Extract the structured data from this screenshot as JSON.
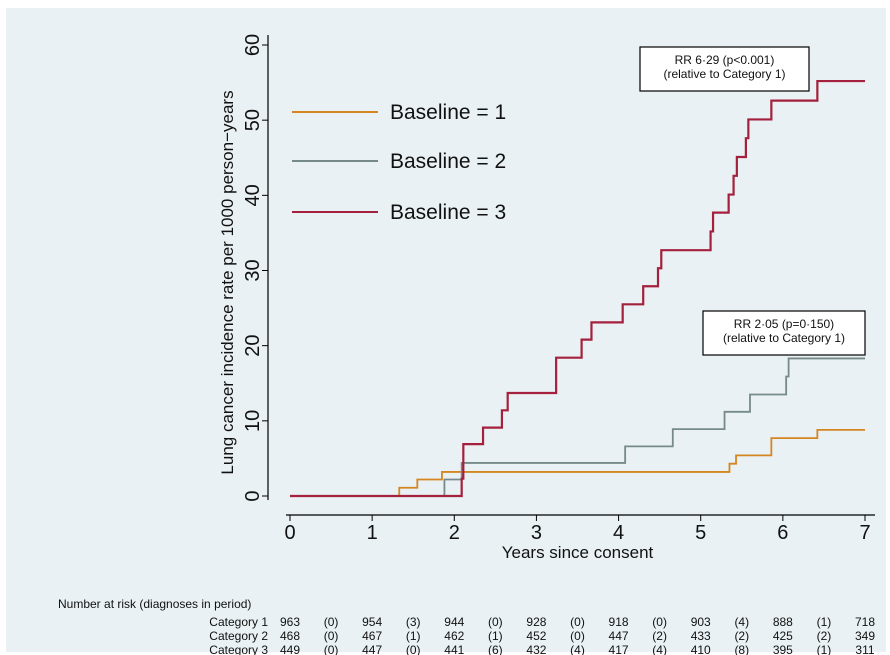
{
  "chart_data": {
    "type": "line",
    "step": true,
    "xlabel": "Years since consent",
    "ylabel": "Lung cancer incidence rate per 1000 person−years",
    "xlim": [
      0,
      7
    ],
    "ylim": [
      0,
      60
    ],
    "xticks": [
      "0",
      "1",
      "2",
      "3",
      "4",
      "5",
      "6",
      "7"
    ],
    "yticks": [
      "0",
      "10",
      "20",
      "30",
      "40",
      "50",
      "60"
    ],
    "grid": false,
    "legend_position": "top-left",
    "series": [
      {
        "name": "Baseline = 1",
        "color": "#d4861f",
        "x": [
          0,
          1.33,
          1.55,
          1.85,
          5.28,
          5.35,
          5.43,
          5.86,
          6.42,
          7.0
        ],
        "y": [
          0,
          1.1,
          2.2,
          3.2,
          3.2,
          4.3,
          5.4,
          7.7,
          8.8,
          8.8
        ]
      },
      {
        "name": "Baseline = 2",
        "color": "#768a8a",
        "x": [
          0,
          1.88,
          2.09,
          4.08,
          4.66,
          5.29,
          5.6,
          6.04,
          6.07,
          7.0
        ],
        "y": [
          0,
          2.2,
          4.4,
          6.6,
          8.9,
          11.2,
          13.5,
          15.9,
          18.3,
          18.3
        ]
      },
      {
        "name": "Baseline = 3",
        "color": "#a4203c",
        "x": [
          0,
          2.09,
          2.11,
          2.35,
          2.58,
          2.65,
          3.24,
          3.55,
          3.67,
          4.05,
          4.3,
          4.48,
          4.52,
          5.12,
          5.15,
          5.34,
          5.4,
          5.44,
          5.55,
          5.58,
          5.86,
          6.42,
          7.0
        ],
        "y": [
          0,
          2.3,
          6.9,
          9.1,
          11.4,
          13.7,
          18.4,
          20.8,
          23.1,
          25.5,
          27.9,
          30.3,
          32.7,
          35.2,
          37.7,
          40.1,
          42.6,
          45.1,
          47.6,
          50.1,
          52.6,
          55.2,
          55.2
        ]
      }
    ],
    "annotations": [
      {
        "lines": [
          "RR 6·29 (p<0.001)",
          "(relative to Category 1)"
        ]
      },
      {
        "lines": [
          "RR 2·05 (p=0·150)",
          "(relative to Category 1)"
        ]
      }
    ]
  },
  "risk_table": {
    "header": "Number at risk (diagnoses in period)",
    "rows": [
      {
        "label": "Category 1",
        "cells": [
          "963",
          "(0)",
          "954",
          "(3)",
          "944",
          "(0)",
          "928",
          "(0)",
          "918",
          "(0)",
          "903",
          "(4)",
          "888",
          "(1)",
          "718"
        ]
      },
      {
        "label": "Category 2",
        "cells": [
          "468",
          "(0)",
          "467",
          "(1)",
          "462",
          "(1)",
          "452",
          "(0)",
          "447",
          "(2)",
          "433",
          "(2)",
          "425",
          "(2)",
          "349"
        ]
      },
      {
        "label": "Category 3",
        "cells": [
          "449",
          "(0)",
          "447",
          "(0)",
          "441",
          "(6)",
          "432",
          "(4)",
          "417",
          "(4)",
          "410",
          "(8)",
          "395",
          "(1)",
          "311"
        ]
      }
    ]
  }
}
